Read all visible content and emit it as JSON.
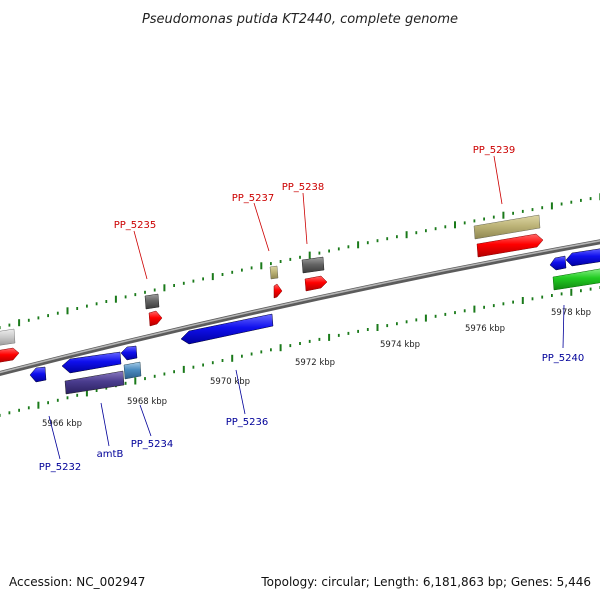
{
  "title": "Pseudomonas putida KT2440, complete genome",
  "footer": {
    "accession": "Accession: NC_002947",
    "summary": "Topology: circular; Length: 6,181,863 bp; Genes: 5,446"
  },
  "colors": {
    "backbone": "#808080",
    "ticks": "#1a7a1a",
    "forward_label": "#cc0000",
    "reverse_label": "#000099"
  },
  "scale_labels": [
    "5966 kbp",
    "5968 kbp",
    "5970 kbp",
    "5972 kbp",
    "5974 kbp",
    "5976 kbp",
    "5978 kbp"
  ],
  "gene_labels": {
    "forward": [
      "PP_5235",
      "PP_5237",
      "PP_5238",
      "PP_5239"
    ],
    "reverse": [
      "PP_5232",
      "amtB",
      "PP_5234",
      "PP_5236",
      "PP_5240"
    ]
  }
}
